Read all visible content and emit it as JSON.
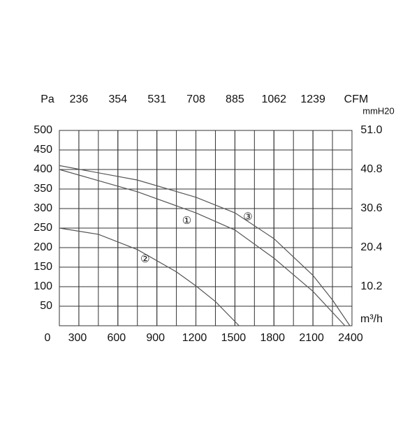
{
  "chart_data": {
    "type": "line",
    "y_label": "Pa",
    "y2_label": "mmH20",
    "x_label": "m³/h",
    "x2_label": "CFM",
    "origin_label": "0",
    "xlim": [
      150,
      2400
    ],
    "xticks": [
      300,
      600,
      900,
      1200,
      1500,
      1800,
      2100,
      2400
    ],
    "x2ticks": [
      236,
      354,
      531,
      708,
      885,
      1062,
      1239
    ],
    "ylim": [
      0,
      500
    ],
    "yticks": [
      50,
      100,
      150,
      200,
      250,
      300,
      350,
      400,
      450,
      500
    ],
    "y2lim": [
      0,
      51
    ],
    "y2ticks": [
      10.2,
      20.4,
      30.6,
      40.8,
      {
        "value": 51,
        "label": "51.0"
      }
    ],
    "grid": true,
    "series": [
      {
        "name": "①",
        "color": "#555555",
        "label_at": [
          1130,
          268
        ],
        "x": [
          150,
          750,
          1200,
          1500,
          1800,
          2100,
          2346
        ],
        "values": [
          400,
          343,
          289,
          245,
          173,
          88,
          0
        ]
      },
      {
        "name": "②",
        "color": "#555555",
        "label_at": [
          810,
          170
        ],
        "x": [
          150,
          450,
          750,
          1050,
          1200,
          1350,
          1532
        ],
        "values": [
          250,
          234,
          195,
          138,
          102,
          62,
          0
        ]
      },
      {
        "name": "③",
        "color": "#555555",
        "label_at": [
          1600,
          278
        ],
        "x": [
          150,
          750,
          1200,
          1500,
          1800,
          2100,
          2250,
          2384
        ],
        "values": [
          410,
          373,
          329,
          289,
          223,
          129,
          66,
          0
        ]
      }
    ]
  }
}
